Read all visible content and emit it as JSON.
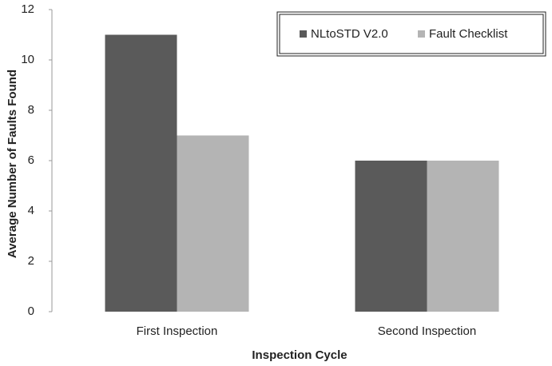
{
  "chart_data": {
    "type": "bar",
    "x_label": "Inspection Cycle",
    "y_label": "Average Number of Faults Found",
    "categories": [
      "First Inspection",
      "Second Inspection"
    ],
    "series": [
      {
        "name": "NLtoSTD V2.0",
        "color": "#5a5a5a",
        "values": [
          11,
          6
        ]
      },
      {
        "name": "Fault Checklist",
        "color": "#b4b4b4",
        "values": [
          7,
          6
        ]
      }
    ],
    "ylim": [
      0,
      12
    ],
    "yticks": [
      0,
      2,
      4,
      6,
      8,
      10,
      12
    ],
    "grid": false,
    "legend": "upper right"
  }
}
